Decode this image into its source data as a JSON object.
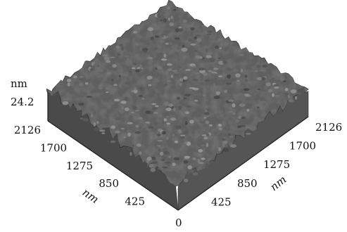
{
  "chart_data": {
    "type": "surface3d",
    "title": "",
    "z_axis": {
      "unit": "nm",
      "max_label": "24.2",
      "range": [
        0,
        24.2
      ]
    },
    "left_axis": {
      "unit": "nm",
      "ticks": [
        "2126",
        "1700",
        "1275",
        "850",
        "425"
      ],
      "range": [
        0,
        2126
      ]
    },
    "right_axis": {
      "unit": "nm",
      "ticks": [
        "2126",
        "1700",
        "1275",
        "850",
        "425"
      ],
      "range": [
        0,
        2126
      ]
    },
    "origin_label": "0",
    "surface_color": "#5a5a5a"
  }
}
